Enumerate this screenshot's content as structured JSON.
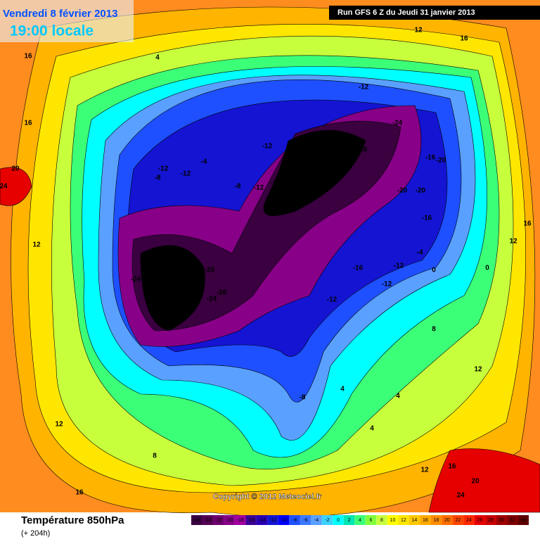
{
  "header": {
    "date": "Vendredi 8 février 2013",
    "time": "19:00 locale",
    "run": "Run GFS 6 Z du Jeudi 31 janvier 2013"
  },
  "map": {
    "copyright": "Copyright © 2012 Meteociel.fr",
    "contour_labels": [
      "16",
      "16",
      "20",
      "24",
      "4",
      "12",
      "16",
      "-12",
      "-24",
      "-28",
      "-12",
      "-16",
      "-20",
      "-12",
      "-12",
      "-8",
      "-4",
      "-8",
      "-12",
      "-16",
      "-20",
      "-24",
      "-28",
      "-20",
      "-20",
      "-16",
      "-4",
      "0",
      "0",
      "16",
      "12",
      "12",
      "-24",
      "-28",
      "-20",
      "-28",
      "-24",
      "-16",
      "-12",
      "-12",
      "-12",
      "8",
      "12",
      "4",
      "4",
      "-8",
      "4",
      "12",
      "8",
      "12",
      "16",
      "20",
      "16",
      "24"
    ]
  },
  "footer": {
    "title": "Température 850hPa",
    "lead": "(+ 204h)"
  },
  "colorbar": {
    "ticks": [
      -26,
      -24,
      -22,
      -20,
      -18,
      -16,
      -14,
      -12,
      -10,
      -8,
      -6,
      -4,
      -2,
      0,
      2,
      4,
      6,
      8,
      10,
      12,
      14,
      16,
      18,
      20,
      22,
      24,
      26,
      28,
      30,
      32,
      34
    ],
    "colors": [
      "#3a0040",
      "#520052",
      "#6e006e",
      "#880088",
      "#a000a0",
      "#3c0096",
      "#2800b4",
      "#1414d2",
      "#0000ff",
      "#1e50ff",
      "#3c78ff",
      "#5aa0ff",
      "#3cd2ff",
      "#00ffff",
      "#00e6b4",
      "#3cff78",
      "#82ff3c",
      "#c8ff3c",
      "#ffff00",
      "#ffe600",
      "#ffc800",
      "#ffaa00",
      "#ff8c00",
      "#ff6e00",
      "#ff4600",
      "#ff2800",
      "#e60000",
      "#c80000",
      "#a00000",
      "#800000",
      "#600000"
    ]
  }
}
